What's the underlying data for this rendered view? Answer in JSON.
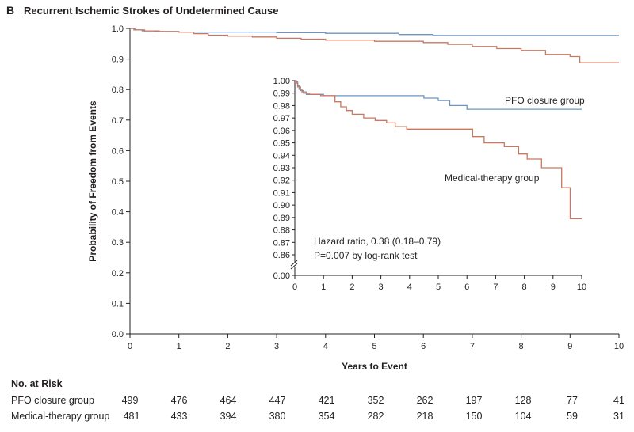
{
  "panel_label": "B",
  "chart_data": [
    {
      "type": "line",
      "title": "Recurrent Ischemic Strokes of Undetermined Cause",
      "xlabel": "Years to Event",
      "ylabel": "Probability of Freedom from Events",
      "xlim": [
        0,
        10
      ],
      "ylim": [
        0.0,
        1.0
      ],
      "xticks": [
        "0",
        "1",
        "2",
        "3",
        "4",
        "5",
        "6",
        "7",
        "8",
        "9",
        "10"
      ],
      "yticks": [
        "0.0",
        "0.1",
        "0.2",
        "0.3",
        "0.4",
        "0.5",
        "0.6",
        "0.7",
        "0.8",
        "0.9",
        "1.0"
      ],
      "grid": false,
      "series": [
        {
          "name": "PFO closure group",
          "color": "#6b95c2",
          "x": [
            0,
            0.08,
            0.25,
            0.5,
            1.0,
            2.0,
            3.0,
            4.0,
            5.5,
            6.2,
            10.0
          ],
          "y": [
            1.0,
            0.995,
            0.992,
            0.99,
            0.988,
            0.988,
            0.986,
            0.984,
            0.98,
            0.977,
            0.977
          ]
        },
        {
          "name": "Medical-therapy group",
          "color": "#c9775f",
          "x": [
            0,
            0.1,
            0.3,
            0.6,
            1.0,
            1.3,
            1.6,
            2.0,
            2.5,
            3.0,
            3.5,
            4.0,
            5.0,
            6.0,
            6.5,
            7.0,
            7.5,
            8.0,
            8.5,
            9.0,
            9.2,
            10.0
          ],
          "y": [
            1.0,
            0.995,
            0.992,
            0.99,
            0.988,
            0.983,
            0.978,
            0.975,
            0.972,
            0.968,
            0.965,
            0.962,
            0.958,
            0.954,
            0.948,
            0.941,
            0.934,
            0.928,
            0.915,
            0.908,
            0.888,
            0.888
          ]
        }
      ]
    },
    {
      "type": "line",
      "title": "",
      "xlim": [
        0,
        10
      ],
      "ylim": [
        0.86,
        1.0
      ],
      "axis_break": true,
      "xticks": [
        "0",
        "1",
        "2",
        "3",
        "4",
        "5",
        "6",
        "7",
        "8",
        "9",
        "10"
      ],
      "yticks": [
        "0.00",
        "0.86",
        "0.87",
        "0.88",
        "0.89",
        "0.90",
        "0.91",
        "0.92",
        "0.93",
        "0.94",
        "0.95",
        "0.96",
        "0.97",
        "0.98",
        "0.99",
        "1.00"
      ],
      "series": [
        {
          "name": "PFO closure group",
          "color": "#6b95c2",
          "x": [
            0,
            0.05,
            0.1,
            0.15,
            0.25,
            0.4,
            1.0,
            3.8,
            4.5,
            5.0,
            5.4,
            6.0,
            10.0
          ],
          "y": [
            1.0,
            0.999,
            0.996,
            0.993,
            0.991,
            0.989,
            0.988,
            0.988,
            0.986,
            0.984,
            0.98,
            0.977,
            0.977
          ]
        },
        {
          "name": "Medical-therapy group",
          "color": "#c9775f",
          "x": [
            0,
            0.05,
            0.1,
            0.2,
            0.3,
            0.5,
            0.9,
            1.4,
            1.6,
            1.8,
            2.0,
            2.4,
            2.8,
            3.2,
            3.5,
            3.9,
            5.5,
            6.2,
            6.6,
            7.3,
            7.8,
            8.1,
            8.6,
            8.9,
            9.3,
            9.6,
            10.0
          ],
          "y": [
            1.0,
            0.998,
            0.995,
            0.992,
            0.99,
            0.989,
            0.988,
            0.983,
            0.979,
            0.976,
            0.973,
            0.97,
            0.968,
            0.966,
            0.963,
            0.961,
            0.961,
            0.955,
            0.95,
            0.947,
            0.941,
            0.937,
            0.93,
            0.93,
            0.914,
            0.889,
            0.889
          ]
        }
      ],
      "annotations": [
        "PFO closure group",
        "Medical-therapy group",
        "Hazard ratio, 0.38 (0.18–0.79)",
        "P=0.007 by log-rank test"
      ]
    }
  ],
  "risk_table": {
    "title": "No. at Risk",
    "rows": [
      {
        "name": "PFO closure group",
        "values": [
          "499",
          "476",
          "464",
          "447",
          "421",
          "352",
          "262",
          "197",
          "128",
          "77",
          "41"
        ]
      },
      {
        "name": "Medical-therapy group",
        "values": [
          "481",
          "433",
          "394",
          "380",
          "354",
          "282",
          "218",
          "150",
          "104",
          "59",
          "31"
        ]
      }
    ]
  }
}
